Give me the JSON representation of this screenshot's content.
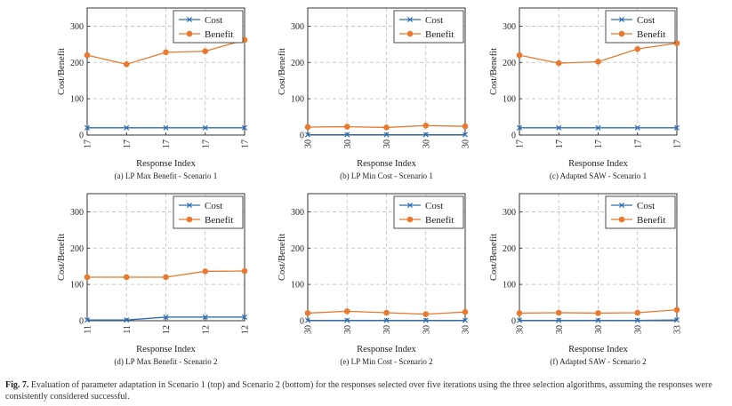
{
  "figure": {
    "label": "Fig. 7.",
    "caption": "Evaluation of parameter adaptation in Scenario 1 (top) and Scenario 2 (bottom) for the responses selected over five iterations using the three selection algorithms, assuming the responses were consistently considered successful."
  },
  "colors": {
    "cost": "#2e6fb4",
    "benefit": "#e8792f",
    "grid": "#bdbdbd",
    "axis": "#222222"
  },
  "chart_data": [
    {
      "type": "line",
      "caption": "(a) LP Max Benefit - Scenario 1",
      "xlabel": "Response Index",
      "ylabel": "Cost/Benefit",
      "categories": [
        "17",
        "17",
        "17",
        "17",
        "17"
      ],
      "ylim": [
        0,
        350
      ],
      "yticks": [
        0,
        100,
        200,
        300
      ],
      "series": [
        {
          "name": "Cost",
          "values": [
            20,
            20,
            20,
            20,
            20
          ]
        },
        {
          "name": "Benefit",
          "values": [
            220,
            195,
            228,
            231,
            262
          ]
        }
      ]
    },
    {
      "type": "line",
      "caption": "(b) LP Min Cost - Scenario 1",
      "xlabel": "Response Index",
      "ylabel": "Cost/Benefit",
      "categories": [
        "30",
        "30",
        "30",
        "30",
        "30"
      ],
      "ylim": [
        0,
        350
      ],
      "yticks": [
        0,
        100,
        200,
        300
      ],
      "series": [
        {
          "name": "Cost",
          "values": [
            1,
            1,
            1,
            1,
            1
          ]
        },
        {
          "name": "Benefit",
          "values": [
            22,
            23,
            21,
            26,
            24
          ]
        }
      ]
    },
    {
      "type": "line",
      "caption": "(c) Adapted SAW - Scenario 1",
      "xlabel": "Response Index",
      "ylabel": "Cost/Benefit",
      "categories": [
        "17",
        "17",
        "17",
        "17",
        "17"
      ],
      "ylim": [
        0,
        350
      ],
      "yticks": [
        0,
        100,
        200,
        300
      ],
      "series": [
        {
          "name": "Cost",
          "values": [
            20,
            20,
            20,
            20,
            20
          ]
        },
        {
          "name": "Benefit",
          "values": [
            220,
            198,
            202,
            237,
            253
          ]
        }
      ]
    },
    {
      "type": "line",
      "caption": "(d) LP Max Benefit - Scenario 2",
      "xlabel": "Response Index",
      "ylabel": "Cost/Benefit",
      "categories": [
        "11",
        "11",
        "12",
        "12",
        "12"
      ],
      "ylim": [
        0,
        350
      ],
      "yticks": [
        0,
        100,
        200,
        300
      ],
      "series": [
        {
          "name": "Cost",
          "values": [
            2,
            2,
            10,
            10,
            10
          ]
        },
        {
          "name": "Benefit",
          "values": [
            120,
            120,
            120,
            136,
            137
          ]
        }
      ]
    },
    {
      "type": "line",
      "caption": "(e) LP Min Cost - Scenario 2",
      "xlabel": "Response Index",
      "ylabel": "Cost/Benefit",
      "categories": [
        "30",
        "30",
        "30",
        "30",
        "30"
      ],
      "ylim": [
        0,
        350
      ],
      "yticks": [
        0,
        100,
        200,
        300
      ],
      "series": [
        {
          "name": "Cost",
          "values": [
            1,
            1,
            1,
            1,
            1
          ]
        },
        {
          "name": "Benefit",
          "values": [
            21,
            26,
            22,
            18,
            24
          ]
        }
      ]
    },
    {
      "type": "line",
      "caption": "(f) Adapted SAW - Scenario 2",
      "xlabel": "Response Index",
      "ylabel": "Cost/Benefit",
      "categories": [
        "30",
        "30",
        "30",
        "30",
        "33"
      ],
      "ylim": [
        0,
        350
      ],
      "yticks": [
        0,
        100,
        200,
        300
      ],
      "series": [
        {
          "name": "Cost",
          "values": [
            1,
            1,
            1,
            1,
            2
          ]
        },
        {
          "name": "Benefit",
          "values": [
            21,
            22,
            21,
            22,
            30
          ]
        }
      ]
    }
  ]
}
